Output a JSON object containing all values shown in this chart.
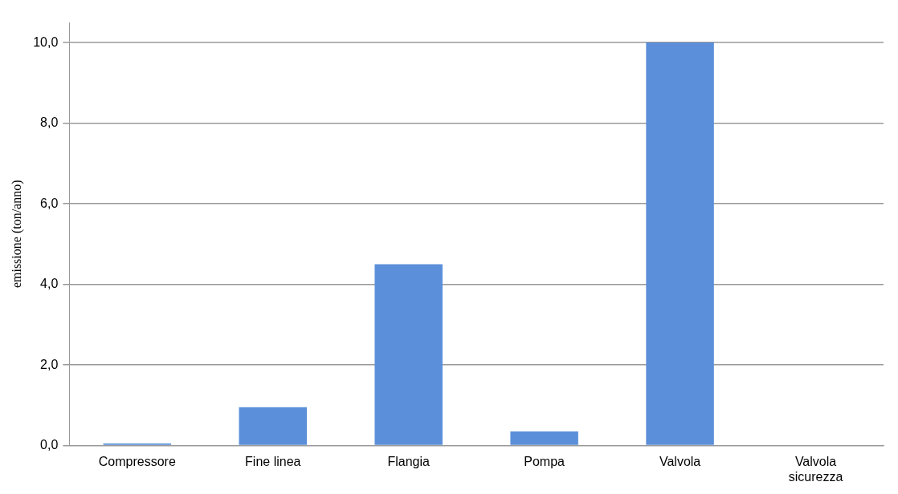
{
  "chart_data": {
    "type": "bar",
    "ylabel": "emissione (ton/anno)",
    "categories": [
      "Compressore",
      "Fine linea",
      "Flangia",
      "Pompa",
      "Valvola",
      "Valvola sicurezza"
    ],
    "values": [
      0.05,
      0.95,
      4.5,
      0.35,
      10.0,
      0
    ],
    "color": "#5b8fd9",
    "ylim": [
      0,
      10.5
    ],
    "yticks": [
      {
        "value": 0,
        "label": "0,0"
      },
      {
        "value": 2,
        "label": "2,0"
      },
      {
        "value": 4,
        "label": "4,0"
      },
      {
        "value": 6,
        "label": "6,0"
      },
      {
        "value": 8,
        "label": "8,0"
      },
      {
        "value": 10,
        "label": "10,0"
      }
    ],
    "grid": "y",
    "legend": false
  }
}
